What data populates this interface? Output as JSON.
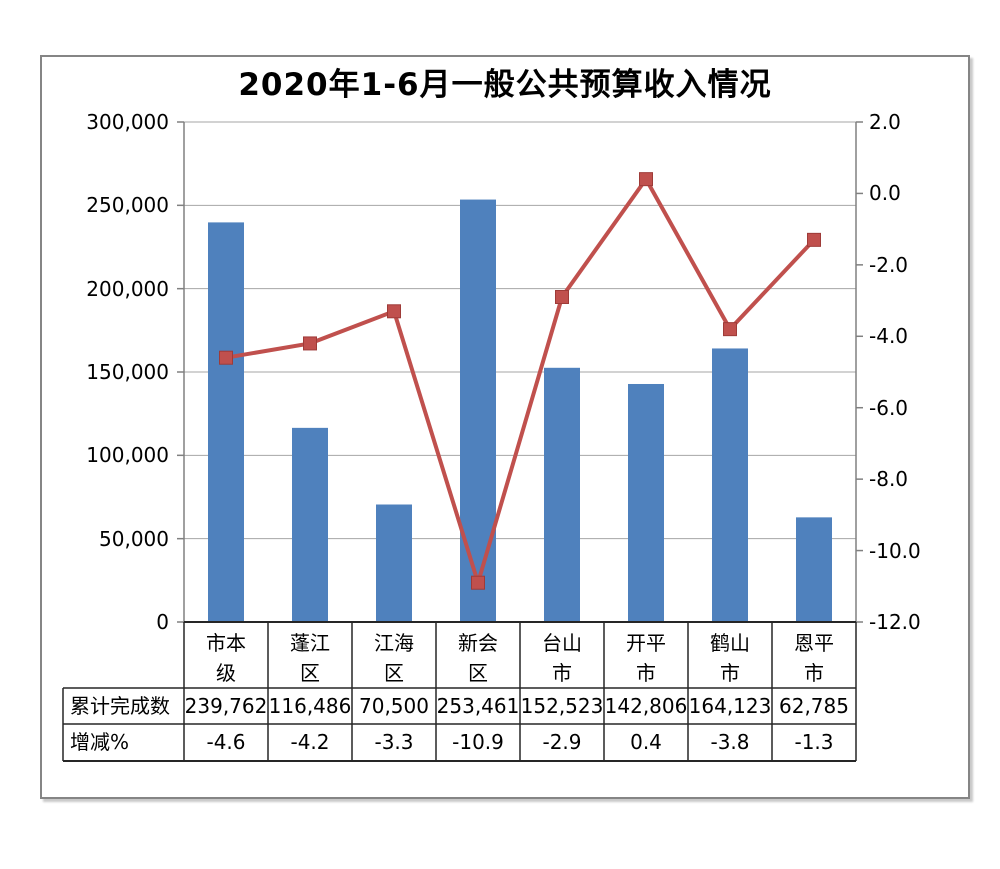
{
  "chart_data": {
    "type": "bar",
    "combo": "bar+line dual-axis with data table",
    "title": "2020年1-6月一般公共预算收入情况",
    "categories": [
      "市本级",
      "蓬江区",
      "江海区",
      "新会区",
      "台山市",
      "开平市",
      "鹤山市",
      "恩平市"
    ],
    "series": [
      {
        "name": "累计完成数",
        "type": "bar",
        "axis": "left",
        "color": "#4F81BD",
        "values": [
          239762,
          116486,
          70500,
          253461,
          152523,
          142806,
          164123,
          62785
        ],
        "labels": [
          "239,762",
          "116,486",
          "70,500",
          "253,461",
          "152,523",
          "142,806",
          "164,123",
          "62,785"
        ]
      },
      {
        "name": "增减%",
        "type": "line",
        "axis": "right",
        "color": "#C0504D",
        "marker": "square",
        "values": [
          -4.6,
          -4.2,
          -3.3,
          -10.9,
          -2.9,
          0.4,
          -3.8,
          -1.3
        ],
        "labels": [
          "-4.6",
          "-4.2",
          "-3.3",
          "-10.9",
          "-2.9",
          "0.4",
          "-3.8",
          "-1.3"
        ]
      }
    ],
    "left_axis": {
      "min": 0,
      "max": 300000,
      "step": 50000,
      "tick_labels": [
        "300,000",
        "250,000",
        "200,000",
        "150,000",
        "100,000",
        "50,000",
        "0"
      ]
    },
    "right_axis": {
      "min": -12,
      "max": 2,
      "step": 2,
      "tick_labels": [
        "2.0",
        "0.0",
        "-2.0",
        "-4.0",
        "-6.0",
        "-8.0",
        "-10.0",
        "-12.0"
      ]
    },
    "grid": true,
    "legend": "none",
    "data_table_shown": true,
    "colors": {
      "bar": "#4F81BD",
      "line": "#C0504D",
      "gridline": "#A6A6A6",
      "axis": "#808080",
      "table_border": "#262626",
      "chart_border": "#858585",
      "text": "#000000"
    }
  }
}
